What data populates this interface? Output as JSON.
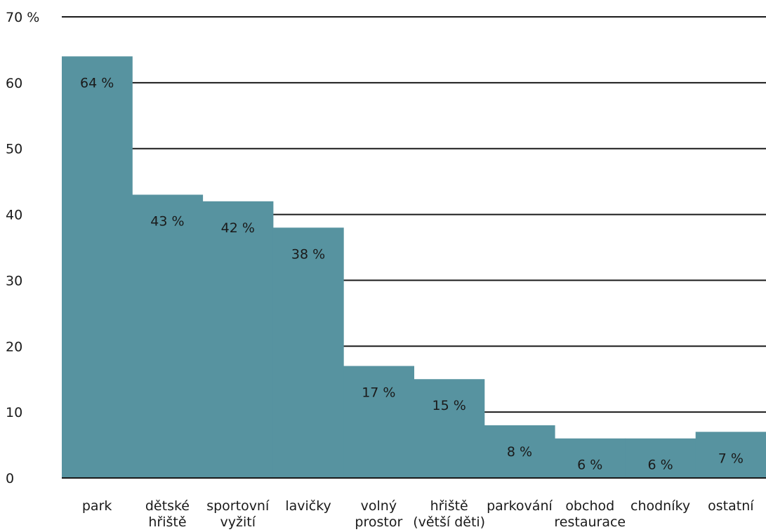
{
  "chart_data": {
    "type": "bar",
    "categories": [
      [
        "park"
      ],
      [
        "dětské",
        "hřiště"
      ],
      [
        "sportovní",
        "vyžití"
      ],
      [
        "lavičky"
      ],
      [
        "volný",
        "prostor"
      ],
      [
        "hřiště",
        "(větší děti)"
      ],
      [
        "parkování"
      ],
      [
        "obchod",
        "restaurace"
      ],
      [
        "chodníky"
      ],
      [
        "ostatní"
      ]
    ],
    "values": [
      64,
      43,
      42,
      38,
      17,
      15,
      8,
      6,
      6,
      7
    ],
    "data_labels": [
      "64 %",
      "43 %",
      "42 %",
      "38 %",
      "17 %",
      "15 %",
      "8 %",
      "6 %",
      "6 %",
      "7 %"
    ],
    "y_ticks": [
      0,
      10,
      20,
      30,
      40,
      50,
      60,
      70
    ],
    "y_tick_labels": [
      "0",
      "10",
      "20",
      "30",
      "40",
      "50",
      "60",
      "70 %"
    ],
    "ylim": [
      0,
      70
    ],
    "grid": true,
    "bar_color": "#5793a0",
    "grid_color": "#1a1a1a"
  }
}
